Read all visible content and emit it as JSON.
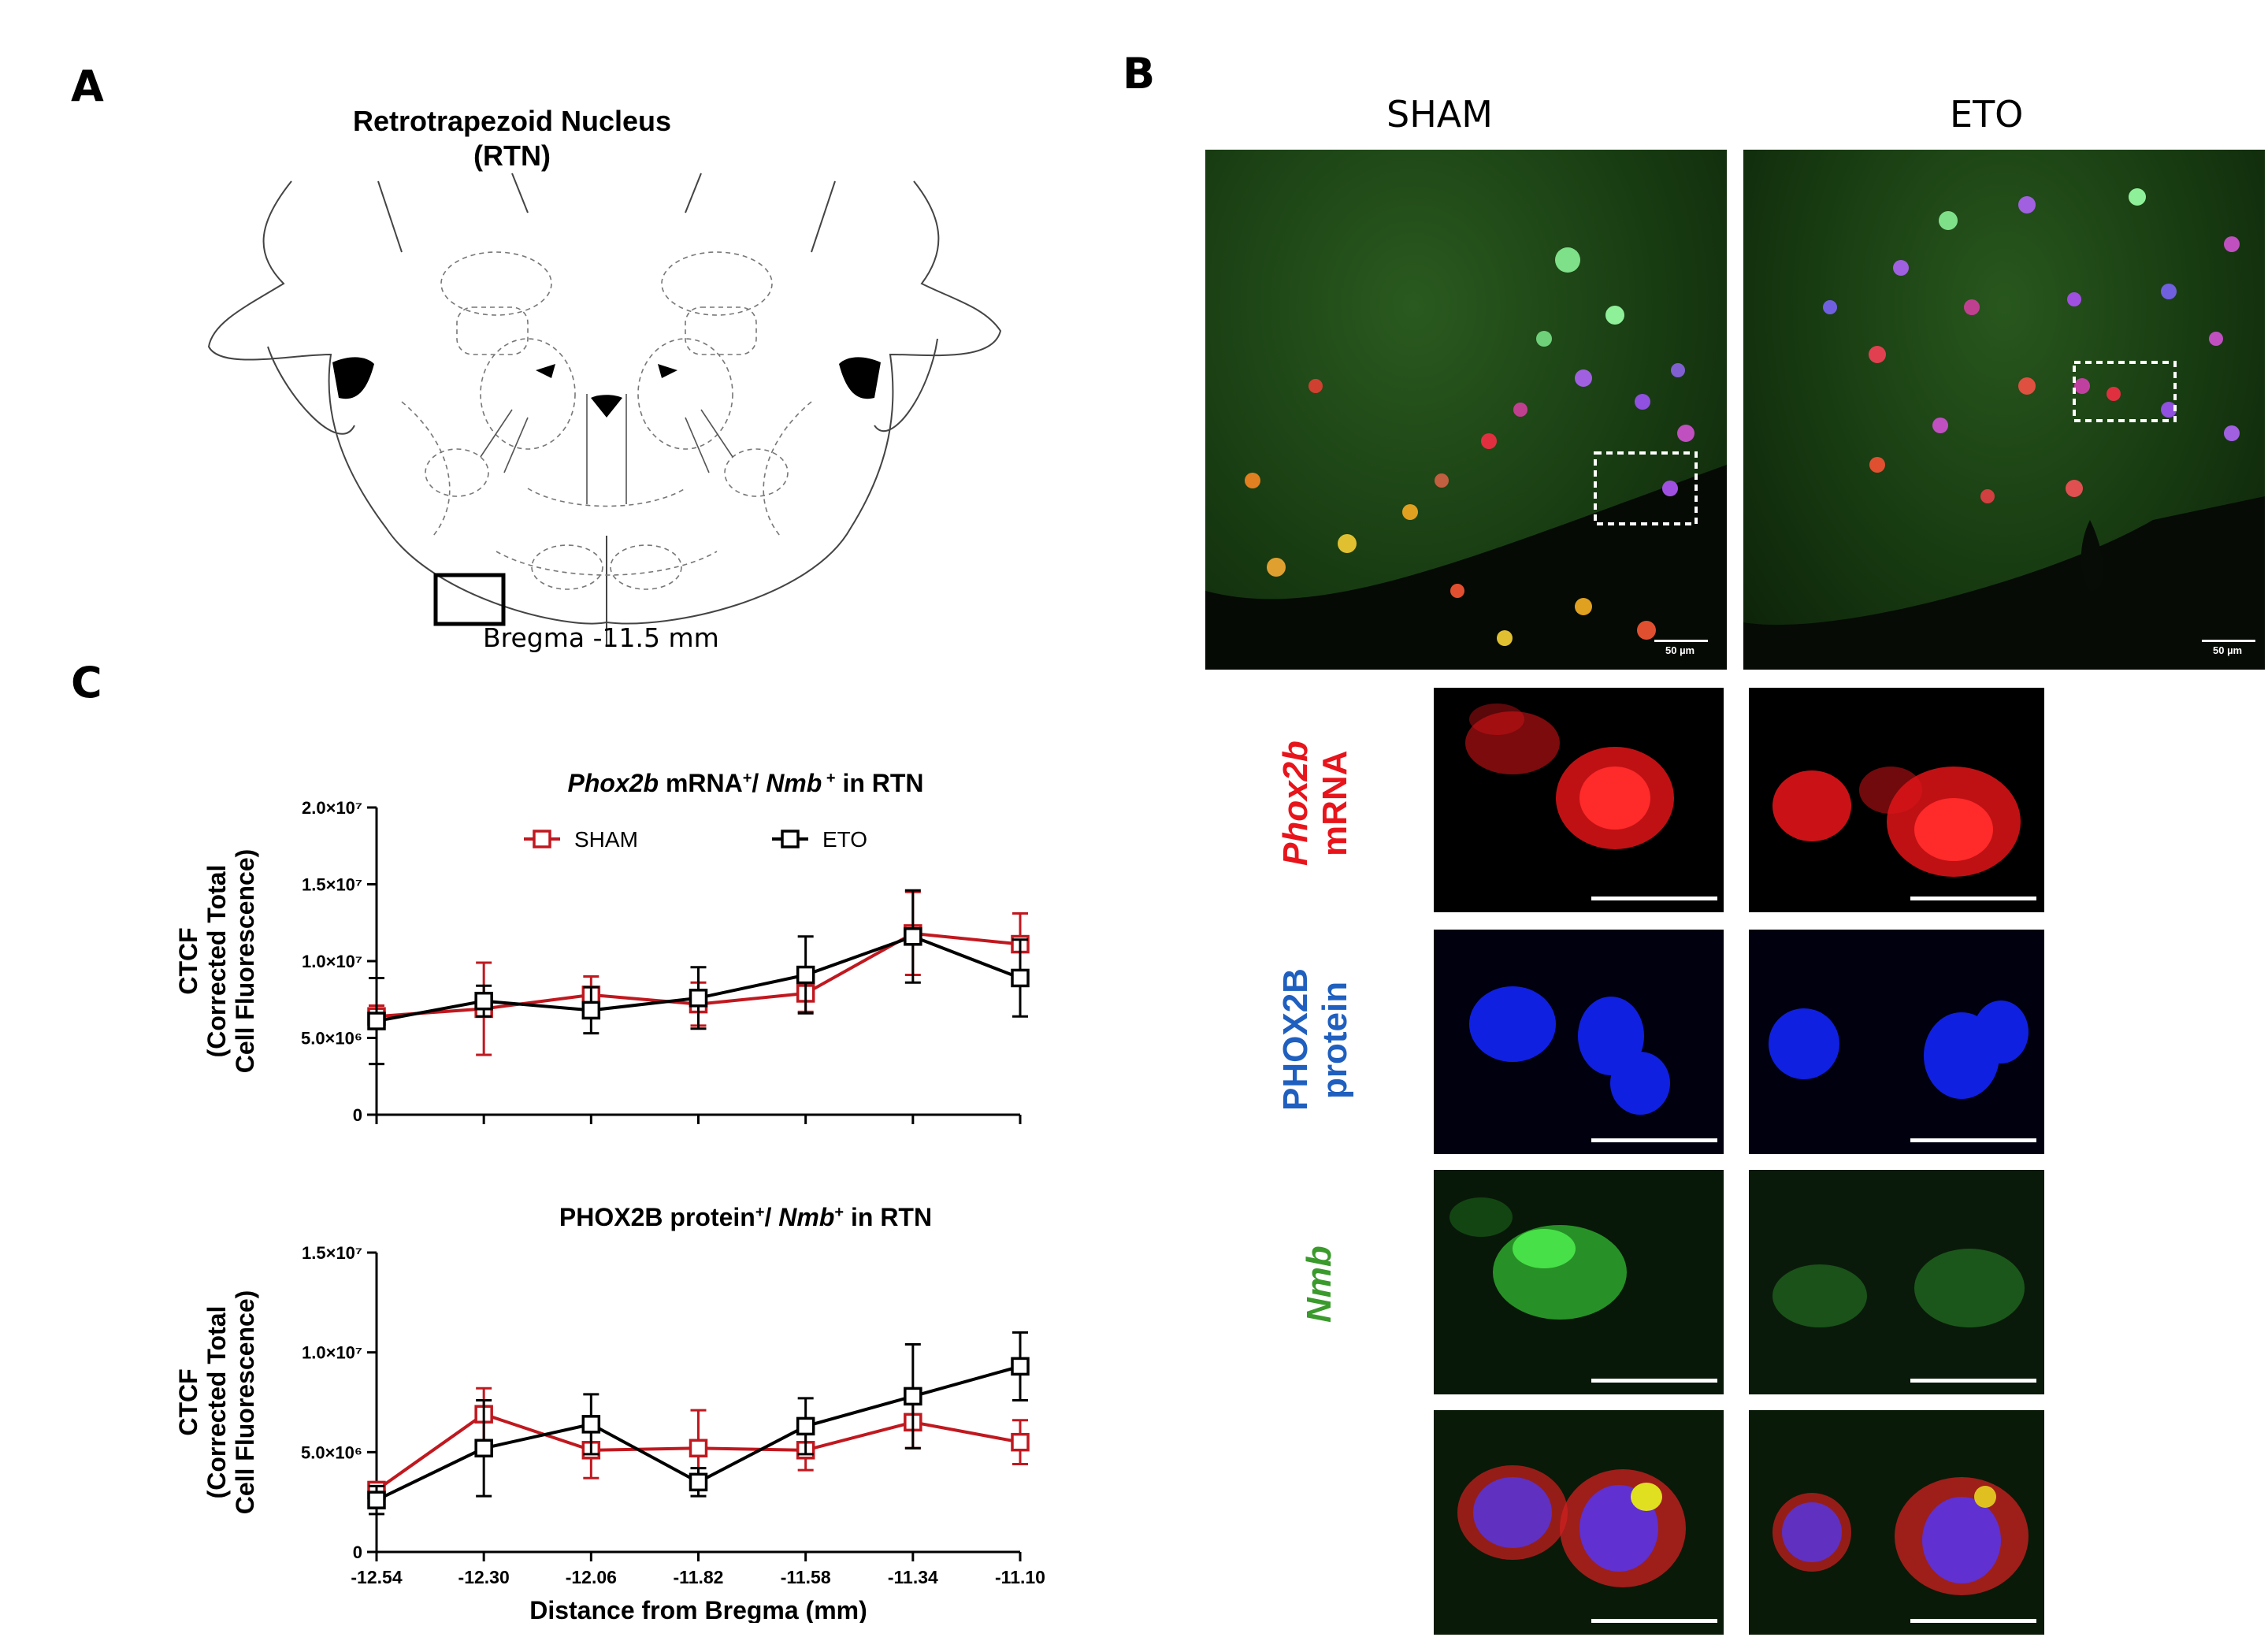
{
  "panels": {
    "A": "A",
    "B": "B",
    "C": "C"
  },
  "schematic": {
    "title_line1": "Retrotrapezoid Nucleus",
    "title_line2": "(RTN)",
    "bregma_label": "Bregma -11.5 mm"
  },
  "micrographs": {
    "col_sham": "SHAM",
    "col_eto": "ETO",
    "scale_label": "50 µm",
    "rows": [
      {
        "name": "phox2b-mrna",
        "line1": "Phox2b",
        "line2": "mRNA",
        "color": "#e8141b"
      },
      {
        "name": "phox2b-protein",
        "line1": "PHOX2B",
        "line2": "protein",
        "color": "#1f5fbf"
      },
      {
        "name": "nmb",
        "line1": "Nmb",
        "line2": "",
        "color": "#3a9a2c"
      }
    ]
  },
  "chart_data": [
    {
      "type": "line",
      "title_parts": [
        "Phox2b",
        " mRNA",
        "+",
        "/ ",
        "Nmb",
        " +",
        " in RTN"
      ],
      "ylabel": [
        "CTCF",
        "(Corrected Total",
        "Cell Fluorescence)"
      ],
      "xlabel": "",
      "x": [
        -12.54,
        -12.3,
        -12.06,
        -11.82,
        -11.58,
        -11.34,
        -11.1
      ],
      "yticks": [
        "0",
        "5.0×10⁶",
        "1.0×10⁷",
        "1.5×10⁷",
        "2.0×10⁷"
      ],
      "ylim": [
        0,
        20000000
      ],
      "legend": [
        "SHAM",
        "ETO"
      ],
      "series": [
        {
          "name": "SHAM",
          "color": "#c0181f",
          "values": [
            6400000,
            6900000,
            7800000,
            7200000,
            7900000,
            11800000,
            11100000
          ],
          "err": [
            700000,
            3000000,
            1200000,
            1400000,
            1200000,
            2700000,
            2000000
          ]
        },
        {
          "name": "ETO",
          "color": "#000000",
          "values": [
            6100000,
            7400000,
            6800000,
            7600000,
            9100000,
            11600000,
            8900000
          ],
          "err": [
            2800000,
            1000000,
            1500000,
            2000000,
            2500000,
            3000000,
            2500000
          ]
        }
      ]
    },
    {
      "type": "line",
      "title_parts": [
        "PHOX2B protein",
        "+",
        "/ ",
        "Nmb",
        "+",
        " in RTN"
      ],
      "ylabel": [
        "CTCF",
        "(Corrected Total",
        "Cell Fluorescence)"
      ],
      "xlabel": "Distance from Bregma (mm)",
      "x": [
        -12.54,
        -12.3,
        -12.06,
        -11.82,
        -11.58,
        -11.34,
        -11.1
      ],
      "xticks": [
        "-12.54",
        "-12.30",
        "-12.06",
        "-11.82",
        "-11.58",
        "-11.34",
        "-11.10"
      ],
      "yticks": [
        "0",
        "5.0×10⁶",
        "1.0×10⁷",
        "1.5×10⁷"
      ],
      "ylim": [
        0,
        15000000
      ],
      "series": [
        {
          "name": "SHAM",
          "color": "#c0181f",
          "values": [
            3100000,
            6900000,
            5100000,
            5200000,
            5100000,
            6500000,
            5500000
          ],
          "err": [
            400000,
            1300000,
            1400000,
            1900000,
            1000000,
            1300000,
            1100000
          ]
        },
        {
          "name": "ETO",
          "color": "#000000",
          "values": [
            2600000,
            5200000,
            6400000,
            3500000,
            6300000,
            7800000,
            9300000
          ],
          "err": [
            700000,
            2400000,
            1500000,
            700000,
            1400000,
            2600000,
            1700000
          ]
        }
      ]
    }
  ]
}
